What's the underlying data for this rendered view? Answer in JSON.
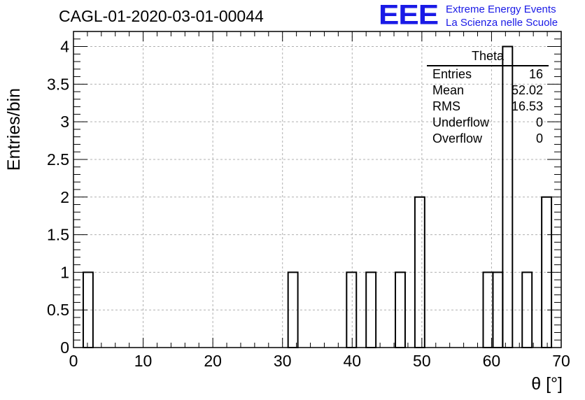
{
  "title": "CAGL-01-2020-03-01-00044",
  "logo": {
    "mark": "EEE",
    "line1": "Extreme Energy Events",
    "line2": "La Scienza nelle Scuole"
  },
  "stats_box": {
    "name": "Theta",
    "rows": [
      {
        "label": "Entries",
        "value": "16"
      },
      {
        "label": "Mean",
        "value": "52.02"
      },
      {
        "label": "RMS",
        "value": "16.53"
      },
      {
        "label": "Underflow",
        "value": "0"
      },
      {
        "label": "Overflow",
        "value": "0"
      }
    ]
  },
  "colors": {
    "logo": "#1a1ae6",
    "line": "#000000",
    "grid": "#b0b0b0"
  },
  "chart_data": {
    "type": "bar",
    "xlabel": "θ [°]",
    "ylabel": "Entries/bin",
    "xlim": [
      0,
      70
    ],
    "ylim": [
      0,
      4.2
    ],
    "bin_width": 1.4,
    "x_ticks": [
      0,
      10,
      20,
      30,
      40,
      50,
      60,
      70
    ],
    "y_ticks": [
      "0",
      "0.5",
      "1",
      "1.5",
      "2",
      "2.5",
      "3",
      "3.5",
      "4"
    ],
    "grid": true,
    "bins": [
      {
        "x": 1.4,
        "value": 1
      },
      {
        "x": 30.8,
        "value": 1
      },
      {
        "x": 39.2,
        "value": 1
      },
      {
        "x": 42.0,
        "value": 1
      },
      {
        "x": 46.2,
        "value": 1
      },
      {
        "x": 49.0,
        "value": 2
      },
      {
        "x": 58.8,
        "value": 1
      },
      {
        "x": 60.2,
        "value": 1
      },
      {
        "x": 61.6,
        "value": 4
      },
      {
        "x": 64.4,
        "value": 1
      },
      {
        "x": 67.2,
        "value": 2
      }
    ]
  }
}
